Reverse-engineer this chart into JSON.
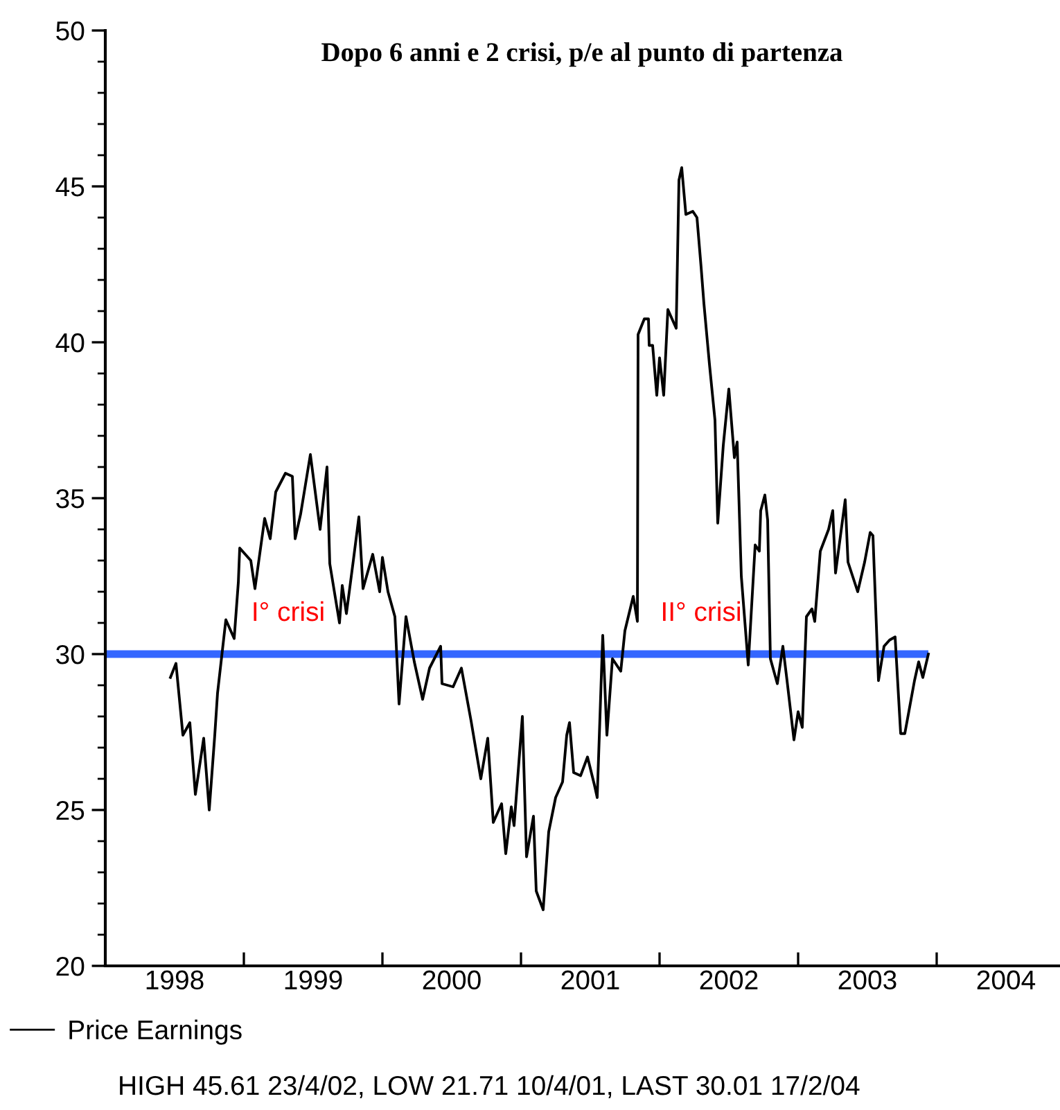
{
  "chart_data": {
    "type": "line",
    "title": "Dopo 6 anni e 2 crisi, p/e al punto di partenza",
    "x": [
      1998.47,
      1998.51,
      1998.56,
      1998.61,
      1998.65,
      1998.71,
      1998.75,
      1998.79,
      1998.81,
      1998.87,
      1998.93,
      1998.96,
      1998.97,
      1999.05,
      1999.08,
      1999.15,
      1999.19,
      1999.23,
      1999.3,
      1999.35,
      1999.37,
      1999.41,
      1999.48,
      1999.55,
      1999.6,
      1999.62,
      1999.69,
      1999.71,
      1999.74,
      1999.79,
      1999.83,
      1999.86,
      1999.93,
      1999.98,
      2000.0,
      2000.04,
      2000.09,
      2000.12,
      2000.17,
      2000.23,
      2000.29,
      2000.34,
      2000.42,
      2000.43,
      2000.51,
      2000.57,
      2000.64,
      2000.71,
      2000.76,
      2000.8,
      2000.86,
      2000.89,
      2000.93,
      2000.95,
      2001.01,
      2001.04,
      2001.09,
      2001.11,
      2001.16,
      2001.2,
      2001.25,
      2001.3,
      2001.33,
      2001.35,
      2001.38,
      2001.43,
      2001.48,
      2001.53,
      2001.55,
      2001.59,
      2001.62,
      2001.66,
      2001.72,
      2001.75,
      2001.81,
      2001.84,
      2001.845,
      2001.89,
      2001.92,
      2001.925,
      2001.95,
      2001.98,
      2002.0,
      2002.03,
      2002.06,
      2002.12,
      2002.14,
      2002.16,
      2002.19,
      2002.24,
      2002.27,
      2002.3,
      2002.32,
      2002.36,
      2002.4,
      2002.42,
      2002.46,
      2002.5,
      2002.54,
      2002.56,
      2002.59,
      2002.64,
      2002.69,
      2002.72,
      2002.73,
      2002.76,
      2002.78,
      2002.8,
      2002.85,
      2002.89,
      2002.92,
      2002.97,
      2003.0,
      2003.03,
      2003.06,
      2003.1,
      2003.12,
      2003.16,
      2003.22,
      2003.25,
      2003.27,
      2003.34,
      2003.36,
      2003.43,
      2003.48,
      2003.52,
      2003.54,
      2003.58,
      2003.62,
      2003.66,
      2003.7,
      2003.74,
      2003.77,
      2003.84,
      2003.87,
      2003.9,
      2003.94
    ],
    "series": [
      {
        "name": "Price Earnings",
        "color": "#000000",
        "values": [
          29.25,
          29.7,
          27.4,
          27.8,
          25.5,
          27.3,
          25.0,
          27.4,
          28.75,
          31.1,
          30.5,
          32.3,
          33.4,
          33.0,
          32.1,
          34.35,
          33.7,
          35.2,
          35.8,
          35.7,
          33.7,
          34.5,
          36.4,
          34.0,
          36.0,
          32.9,
          31.0,
          32.2,
          31.3,
          33.0,
          34.4,
          32.1,
          33.2,
          32.0,
          33.1,
          32.0,
          31.2,
          28.4,
          31.2,
          29.75,
          28.55,
          29.55,
          30.25,
          29.05,
          28.95,
          29.55,
          27.85,
          26.0,
          27.3,
          24.6,
          25.2,
          23.6,
          25.1,
          24.5,
          28.0,
          23.5,
          24.8,
          22.4,
          21.8,
          24.3,
          25.4,
          25.9,
          27.4,
          27.8,
          26.2,
          26.1,
          26.7,
          25.8,
          25.4,
          30.6,
          27.4,
          29.85,
          29.45,
          30.75,
          31.85,
          31.05,
          40.25,
          40.75,
          40.75,
          39.9,
          39.9,
          38.3,
          39.5,
          38.3,
          41.05,
          40.45,
          45.2,
          45.6,
          44.1,
          44.2,
          44.0,
          42.4,
          41.25,
          39.3,
          37.5,
          34.2,
          36.7,
          38.5,
          36.3,
          36.8,
          32.5,
          29.65,
          33.5,
          33.3,
          34.6,
          35.1,
          34.3,
          29.85,
          29.05,
          30.25,
          29.15,
          27.25,
          28.15,
          27.65,
          31.2,
          31.45,
          31.05,
          33.3,
          34.0,
          34.6,
          32.6,
          34.95,
          32.95,
          32.0,
          32.95,
          33.9,
          33.8,
          29.15,
          30.25,
          30.45,
          30.55,
          27.45,
          27.45,
          29.15,
          29.75,
          29.25,
          30.0
        ]
      }
    ],
    "xlim": [
      1998,
      2004.88
    ],
    "xticks": [
      {
        "value": 1998,
        "label": null
      },
      {
        "value": 1999,
        "label": null
      },
      {
        "value": 2000,
        "label": null
      },
      {
        "value": 2001,
        "label": null
      },
      {
        "value": 2002,
        "label": null
      },
      {
        "value": 2003,
        "label": null
      },
      {
        "value": 2004,
        "label": null
      },
      {
        "value": 1998.5,
        "label": "1998"
      },
      {
        "value": 1999.5,
        "label": "1999"
      },
      {
        "value": 2000.5,
        "label": "2000"
      },
      {
        "value": 2001.5,
        "label": "2001"
      },
      {
        "value": 2002.5,
        "label": "2002"
      },
      {
        "value": 2003.5,
        "label": "2003"
      },
      {
        "value": 2004.5,
        "label": "2004"
      }
    ],
    "ylim": [
      20,
      50
    ],
    "yticks": [
      20,
      25,
      30,
      35,
      40,
      45,
      50
    ],
    "ref_lines": [
      {
        "axis": "y",
        "value": 30,
        "color": "#3366ff"
      }
    ],
    "annotations": [
      "I° crisi",
      "II° crisi",
      "HIGH 45.61 23/4/02, LOW 21.71 10/4/01, LAST 30.01 17/2/04"
    ],
    "legend": "bottom left",
    "grid": false,
    "line_style": "solid",
    "marker": "none"
  }
}
